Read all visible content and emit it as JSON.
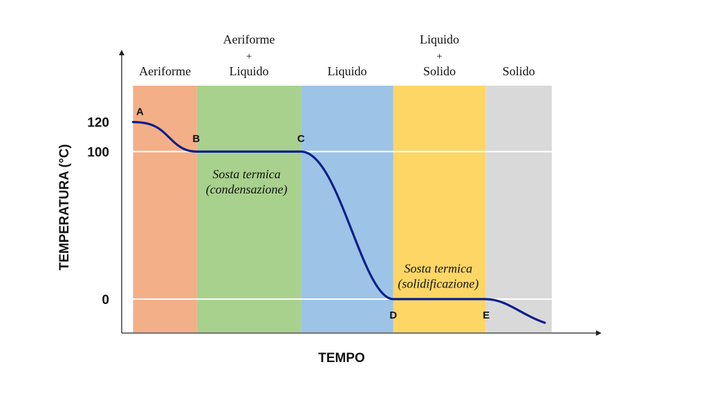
{
  "chart_data": {
    "type": "line",
    "xlabel": "TEMPO",
    "ylabel": "TEMPERATURA (°C)",
    "yticks": [
      120,
      100,
      0
    ],
    "region_colors": [
      "#F3AF87",
      "#A8D18D",
      "#9DC3E6",
      "#FDD666",
      "#D9D9D9"
    ],
    "regions": [
      {
        "label_lines": [
          "Aeriforme"
        ],
        "x_start": 0,
        "x_end": 13.5
      },
      {
        "label_lines": [
          "Aeriforme",
          "+",
          "Liquido"
        ],
        "x_start": 13.5,
        "x_end": 35.5
      },
      {
        "label_lines": [
          "Liquido"
        ],
        "x_start": 35.5,
        "x_end": 55
      },
      {
        "label_lines": [
          "Liquido",
          "+",
          "Solido"
        ],
        "x_start": 55,
        "x_end": 74.5
      },
      {
        "label_lines": [
          "Solido"
        ],
        "x_start": 74.5,
        "x_end": 88.5
      }
    ],
    "series": [
      {
        "color": "#0A1E8C",
        "points": [
          {
            "x": 0,
            "y": 120,
            "label": "A"
          },
          {
            "x": 13.5,
            "y": 100,
            "label": "B"
          },
          {
            "x": 35.5,
            "y": 100,
            "label": "C"
          },
          {
            "x": 55,
            "y": 0,
            "label": "D"
          },
          {
            "x": 74.5,
            "y": 0,
            "label": "E"
          },
          {
            "x": 87,
            "y": -16
          }
        ]
      }
    ],
    "gridlines_y": [
      100,
      0
    ],
    "annotations": [
      {
        "lines": [
          "Sosta termica",
          "(condensazione)"
        ],
        "x": 24,
        "y": 82
      },
      {
        "lines": [
          "Sosta termica",
          "(solidificazione)"
        ],
        "x": 64.5,
        "y": 18
      }
    ],
    "xlim": [
      -2.4,
      99
    ],
    "ylim": [
      -23,
      169
    ]
  }
}
